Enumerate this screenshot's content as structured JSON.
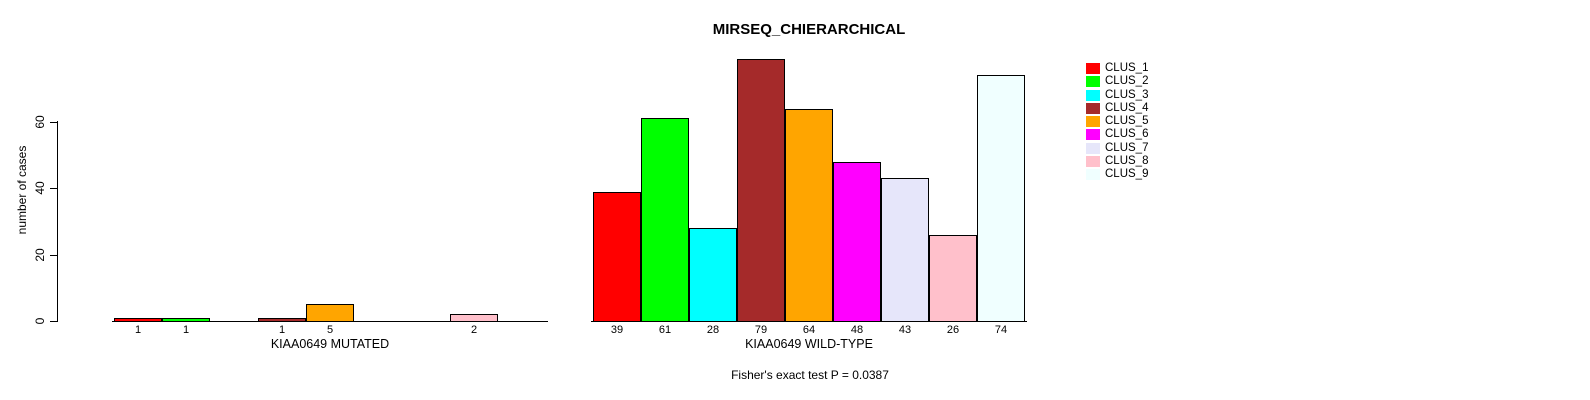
{
  "chart_data": {
    "type": "bar",
    "title": "MIRSEQ_CHIERARCHICAL",
    "ylabel": "number of cases",
    "ylim": [
      0,
      80
    ],
    "yticks": [
      0,
      20,
      40,
      60
    ],
    "grid": false,
    "legend_position": "right",
    "series_labels": [
      "CLUS_1",
      "CLUS_2",
      "CLUS_3",
      "CLUS_4",
      "CLUS_5",
      "CLUS_6",
      "CLUS_7",
      "CLUS_8",
      "CLUS_9"
    ],
    "series_colors": [
      "#FF0000",
      "#00FF00",
      "#00FFFF",
      "#A52A2A",
      "#FFA500",
      "#FF00FF",
      "#E6E6FA",
      "#FFC0CB",
      "#F0FFFF"
    ],
    "groups": [
      {
        "label": "KIAA0649 MUTATED",
        "values": [
          1,
          1,
          0,
          1,
          5,
          0,
          0,
          2,
          0
        ]
      },
      {
        "label": "KIAA0649 WILD-TYPE",
        "values": [
          39,
          61,
          28,
          79,
          64,
          48,
          43,
          26,
          74
        ]
      }
    ],
    "bar_value_labels_shown": true,
    "annotation": "Fisher's exact test P = 0.0387"
  }
}
